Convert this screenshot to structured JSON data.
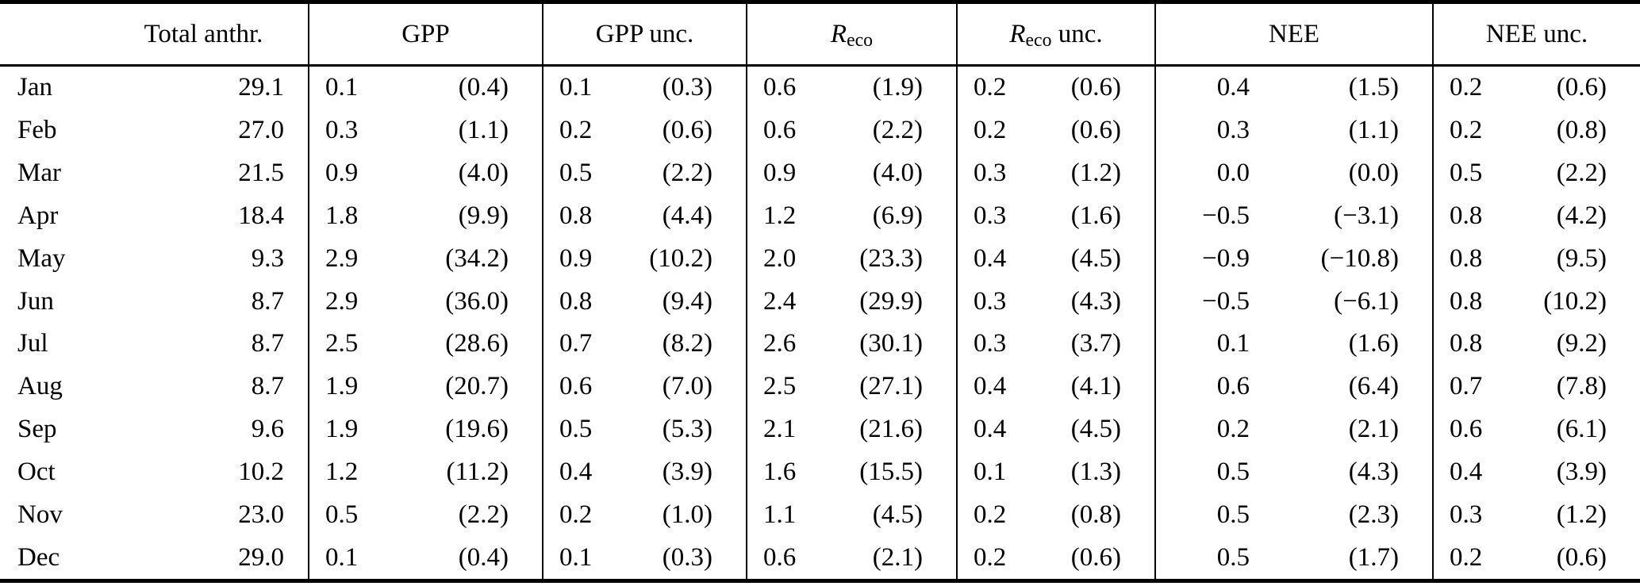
{
  "colors": {
    "background": "#ffffff",
    "text": "#000000",
    "rules": "#000000"
  },
  "table": {
    "headers": [
      {
        "text": "Total anthr."
      },
      {
        "text": "GPP"
      },
      {
        "text": "GPP unc."
      },
      {
        "base": "R",
        "sub": "eco",
        "suffix": ""
      },
      {
        "base": "R",
        "sub": "eco",
        "suffix": " unc."
      },
      {
        "text": "NEE"
      },
      {
        "text": "NEE unc."
      }
    ],
    "rows": [
      {
        "month": "Jan",
        "total": "29.1",
        "gpp": [
          "0.1",
          "(0.4)"
        ],
        "gpp_unc": [
          "0.1",
          "(0.3)"
        ],
        "reco": [
          "0.6",
          "(1.9)"
        ],
        "reco_unc": [
          "0.2",
          "(0.6)"
        ],
        "nee": [
          "0.4",
          "(1.5)"
        ],
        "nee_unc": [
          "0.2",
          "(0.6)"
        ]
      },
      {
        "month": "Feb",
        "total": "27.0",
        "gpp": [
          "0.3",
          "(1.1)"
        ],
        "gpp_unc": [
          "0.2",
          "(0.6)"
        ],
        "reco": [
          "0.6",
          "(2.2)"
        ],
        "reco_unc": [
          "0.2",
          "(0.6)"
        ],
        "nee": [
          "0.3",
          "(1.1)"
        ],
        "nee_unc": [
          "0.2",
          "(0.8)"
        ]
      },
      {
        "month": "Mar",
        "total": "21.5",
        "gpp": [
          "0.9",
          "(4.0)"
        ],
        "gpp_unc": [
          "0.5",
          "(2.2)"
        ],
        "reco": [
          "0.9",
          "(4.0)"
        ],
        "reco_unc": [
          "0.3",
          "(1.2)"
        ],
        "nee": [
          "0.0",
          "(0.0)"
        ],
        "nee_unc": [
          "0.5",
          "(2.2)"
        ]
      },
      {
        "month": "Apr",
        "total": "18.4",
        "gpp": [
          "1.8",
          "(9.9)"
        ],
        "gpp_unc": [
          "0.8",
          "(4.4)"
        ],
        "reco": [
          "1.2",
          "(6.9)"
        ],
        "reco_unc": [
          "0.3",
          "(1.6)"
        ],
        "nee": [
          "−0.5",
          "(−3.1)"
        ],
        "nee_unc": [
          "0.8",
          "(4.2)"
        ]
      },
      {
        "month": "May",
        "total": "9.3",
        "gpp": [
          "2.9",
          "(34.2)"
        ],
        "gpp_unc": [
          "0.9",
          "(10.2)"
        ],
        "reco": [
          "2.0",
          "(23.3)"
        ],
        "reco_unc": [
          "0.4",
          "(4.5)"
        ],
        "nee": [
          "−0.9",
          "(−10.8)"
        ],
        "nee_unc": [
          "0.8",
          "(9.5)"
        ]
      },
      {
        "month": "Jun",
        "total": "8.7",
        "gpp": [
          "2.9",
          "(36.0)"
        ],
        "gpp_unc": [
          "0.8",
          "(9.4)"
        ],
        "reco": [
          "2.4",
          "(29.9)"
        ],
        "reco_unc": [
          "0.3",
          "(4.3)"
        ],
        "nee": [
          "−0.5",
          "(−6.1)"
        ],
        "nee_unc": [
          "0.8",
          "(10.2)"
        ]
      },
      {
        "month": "Jul",
        "total": "8.7",
        "gpp": [
          "2.5",
          "(28.6)"
        ],
        "gpp_unc": [
          "0.7",
          "(8.2)"
        ],
        "reco": [
          "2.6",
          "(30.1)"
        ],
        "reco_unc": [
          "0.3",
          "(3.7)"
        ],
        "nee": [
          "0.1",
          "(1.6)"
        ],
        "nee_unc": [
          "0.8",
          "(9.2)"
        ]
      },
      {
        "month": "Aug",
        "total": "8.7",
        "gpp": [
          "1.9",
          "(20.7)"
        ],
        "gpp_unc": [
          "0.6",
          "(7.0)"
        ],
        "reco": [
          "2.5",
          "(27.1)"
        ],
        "reco_unc": [
          "0.4",
          "(4.1)"
        ],
        "nee": [
          "0.6",
          "(6.4)"
        ],
        "nee_unc": [
          "0.7",
          "(7.8)"
        ]
      },
      {
        "month": "Sep",
        "total": "9.6",
        "gpp": [
          "1.9",
          "(19.6)"
        ],
        "gpp_unc": [
          "0.5",
          "(5.3)"
        ],
        "reco": [
          "2.1",
          "(21.6)"
        ],
        "reco_unc": [
          "0.4",
          "(4.5)"
        ],
        "nee": [
          "0.2",
          "(2.1)"
        ],
        "nee_unc": [
          "0.6",
          "(6.1)"
        ]
      },
      {
        "month": "Oct",
        "total": "10.2",
        "gpp": [
          "1.2",
          "(11.2)"
        ],
        "gpp_unc": [
          "0.4",
          "(3.9)"
        ],
        "reco": [
          "1.6",
          "(15.5)"
        ],
        "reco_unc": [
          "0.1",
          "(1.3)"
        ],
        "nee": [
          "0.5",
          "(4.3)"
        ],
        "nee_unc": [
          "0.4",
          "(3.9)"
        ]
      },
      {
        "month": "Nov",
        "total": "23.0",
        "gpp": [
          "0.5",
          "(2.2)"
        ],
        "gpp_unc": [
          "0.2",
          "(1.0)"
        ],
        "reco": [
          "1.1",
          "(4.5)"
        ],
        "reco_unc": [
          "0.2",
          "(0.8)"
        ],
        "nee": [
          "0.5",
          "(2.3)"
        ],
        "nee_unc": [
          "0.3",
          "(1.2)"
        ]
      },
      {
        "month": "Dec",
        "total": "29.0",
        "gpp": [
          "0.1",
          "(0.4)"
        ],
        "gpp_unc": [
          "0.1",
          "(0.3)"
        ],
        "reco": [
          "0.6",
          "(2.1)"
        ],
        "reco_unc": [
          "0.2",
          "(0.6)"
        ],
        "nee": [
          "0.5",
          "(1.7)"
        ],
        "nee_unc": [
          "0.2",
          "(0.6)"
        ]
      }
    ]
  }
}
